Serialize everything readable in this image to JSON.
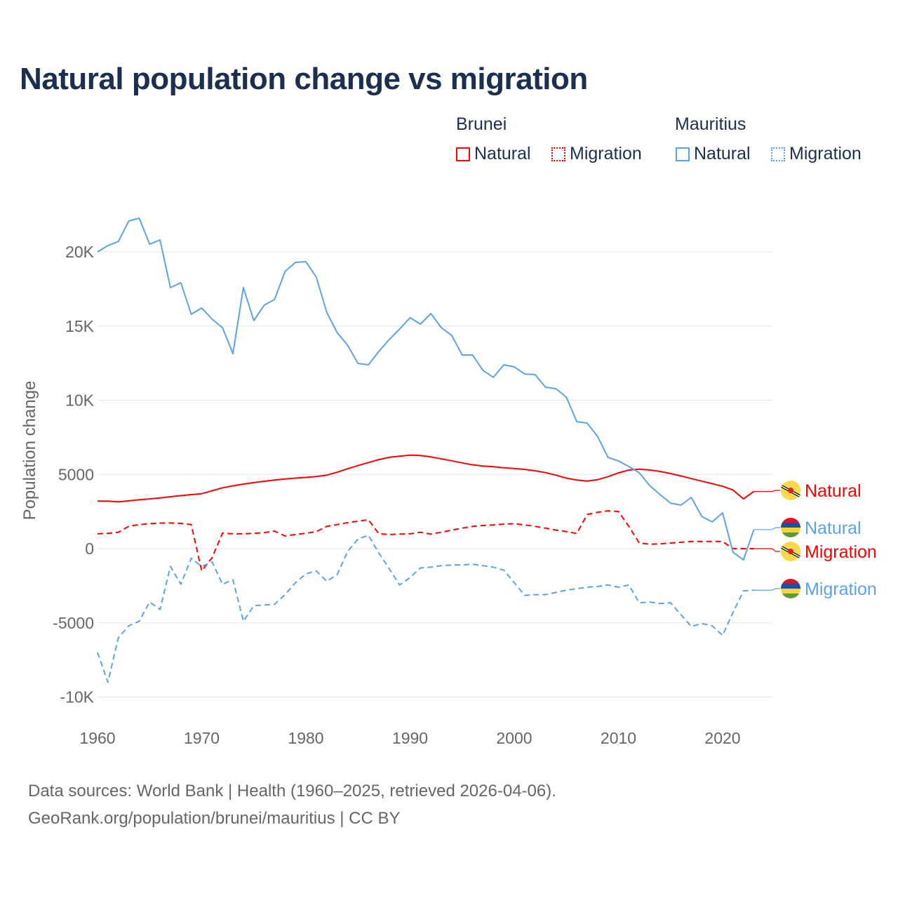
{
  "chart_data": {
    "type": "line",
    "title": "Natural population change vs migration",
    "ylabel": "Population change",
    "xlabel": "",
    "xlim": [
      1960,
      2025
    ],
    "ylim": [
      -10000,
      22500
    ],
    "grid": true,
    "x_ticks": [
      1960,
      1970,
      1980,
      1990,
      2000,
      2010,
      2020
    ],
    "x_tick_labels": [
      "1960",
      "1970",
      "1980",
      "1990",
      "2000",
      "2010",
      "2020"
    ],
    "y_ticks": [
      -10000,
      -5000,
      0,
      5000,
      10000,
      15000,
      20000
    ],
    "y_tick_labels": [
      "-10K",
      "-5000",
      "0",
      "5000",
      "10K",
      "15K",
      "20K"
    ],
    "legend": {
      "placement": "top-right",
      "groups": [
        {
          "country": "Brunei",
          "items": [
            "Natural",
            "Migration"
          ]
        },
        {
          "country": "Mauritius",
          "items": [
            "Natural",
            "Migration"
          ]
        }
      ]
    },
    "start_year": 1960,
    "series": [
      {
        "name": "Brunei Natural",
        "country": "Brunei",
        "kind": "Natural",
        "color": "#ff0000",
        "dash": false,
        "values": [
          3200,
          3200,
          3150,
          3220,
          3290,
          3350,
          3420,
          3500,
          3570,
          3640,
          3700,
          3900,
          4100,
          4230,
          4350,
          4450,
          4540,
          4620,
          4690,
          4750,
          4800,
          4860,
          4950,
          5150,
          5380,
          5600,
          5800,
          6000,
          6150,
          6230,
          6300,
          6280,
          6180,
          6050,
          5920,
          5780,
          5650,
          5570,
          5520,
          5450,
          5400,
          5340,
          5250,
          5120,
          4950,
          4750,
          4620,
          4550,
          4650,
          4850,
          5100,
          5300,
          5350,
          5300,
          5200,
          5060,
          4900,
          4720,
          4550,
          4380,
          4200,
          3950,
          3350,
          3850
        ]
      },
      {
        "name": "Brunei Migration",
        "country": "Brunei",
        "kind": "Migration",
        "color": "#ff0000",
        "dash": true,
        "values": [
          1000,
          1030,
          1100,
          1500,
          1620,
          1680,
          1720,
          1730,
          1700,
          1620,
          -1500,
          -600,
          1050,
          1000,
          1000,
          1030,
          1080,
          1180,
          850,
          950,
          1030,
          1150,
          1500,
          1620,
          1750,
          1850,
          1950,
          1000,
          950,
          980,
          1000,
          1100,
          980,
          1100,
          1250,
          1380,
          1500,
          1560,
          1600,
          1650,
          1680,
          1600,
          1500,
          1380,
          1250,
          1150,
          1020,
          2300,
          2450,
          2550,
          2500,
          1500,
          380,
          300,
          320,
          380,
          430,
          480,
          480,
          480,
          480,
          0,
          0,
          0
        ]
      },
      {
        "name": "Mauritius Natural",
        "country": "Mauritius",
        "kind": "Natural",
        "color": "#5ba3e6",
        "dash": false,
        "values": [
          20000,
          20420,
          20700,
          22080,
          22270,
          20520,
          20800,
          17590,
          17920,
          15790,
          16220,
          15460,
          14890,
          13140,
          17590,
          15370,
          16410,
          16790,
          18680,
          19290,
          19340,
          18300,
          15930,
          14560,
          13710,
          12480,
          12390,
          13290,
          14090,
          14800,
          15560,
          15130,
          15840,
          14890,
          14370,
          13050,
          13050,
          12010,
          11540,
          12390,
          12250,
          11770,
          11730,
          10880,
          10780,
          10210,
          8560,
          8460,
          7560,
          6150,
          5910,
          5530,
          5110,
          4250,
          3640,
          3070,
          2930,
          3450,
          2170,
          1800,
          2410,
          -240,
          -760,
          1280
        ]
      },
      {
        "name": "Mauritius Migration",
        "country": "Mauritius",
        "kind": "Migration",
        "color": "#5ba3e6",
        "dash": true,
        "values": [
          -7000,
          -9000,
          -6000,
          -5200,
          -4900,
          -3600,
          -4100,
          -1200,
          -2400,
          -650,
          -1200,
          -900,
          -2400,
          -2100,
          -4900,
          -3850,
          -3800,
          -3750,
          -3100,
          -2300,
          -1700,
          -1500,
          -2200,
          -1750,
          -200,
          650,
          900,
          -300,
          -1350,
          -2450,
          -1950,
          -1300,
          -1250,
          -1150,
          -1100,
          -1100,
          -1050,
          -1150,
          -1250,
          -1450,
          -2300,
          -3150,
          -3100,
          -3100,
          -2950,
          -2800,
          -2700,
          -2600,
          -2550,
          -2450,
          -2600,
          -2450,
          -3650,
          -3600,
          -3700,
          -3650,
          -4450,
          -5250,
          -5050,
          -5200,
          -5850,
          -4300,
          -2850,
          -2800
        ]
      }
    ],
    "end_labels": [
      {
        "text": "Natural",
        "series": 0,
        "flag": "brunei-flag"
      },
      {
        "text": "Natural",
        "series": 2,
        "flag": "mauritius-flag"
      },
      {
        "text": "Migration",
        "series": 1,
        "flag": "brunei-flag"
      },
      {
        "text": "Migration",
        "series": 3,
        "flag": "mauritius-flag"
      }
    ]
  },
  "footer": {
    "line1": "Data sources: World Bank | Health (1960–2025, retrieved 2026-04-06).",
    "line2": "GeoRank.org/population/brunei/mauritius | CC BY"
  }
}
